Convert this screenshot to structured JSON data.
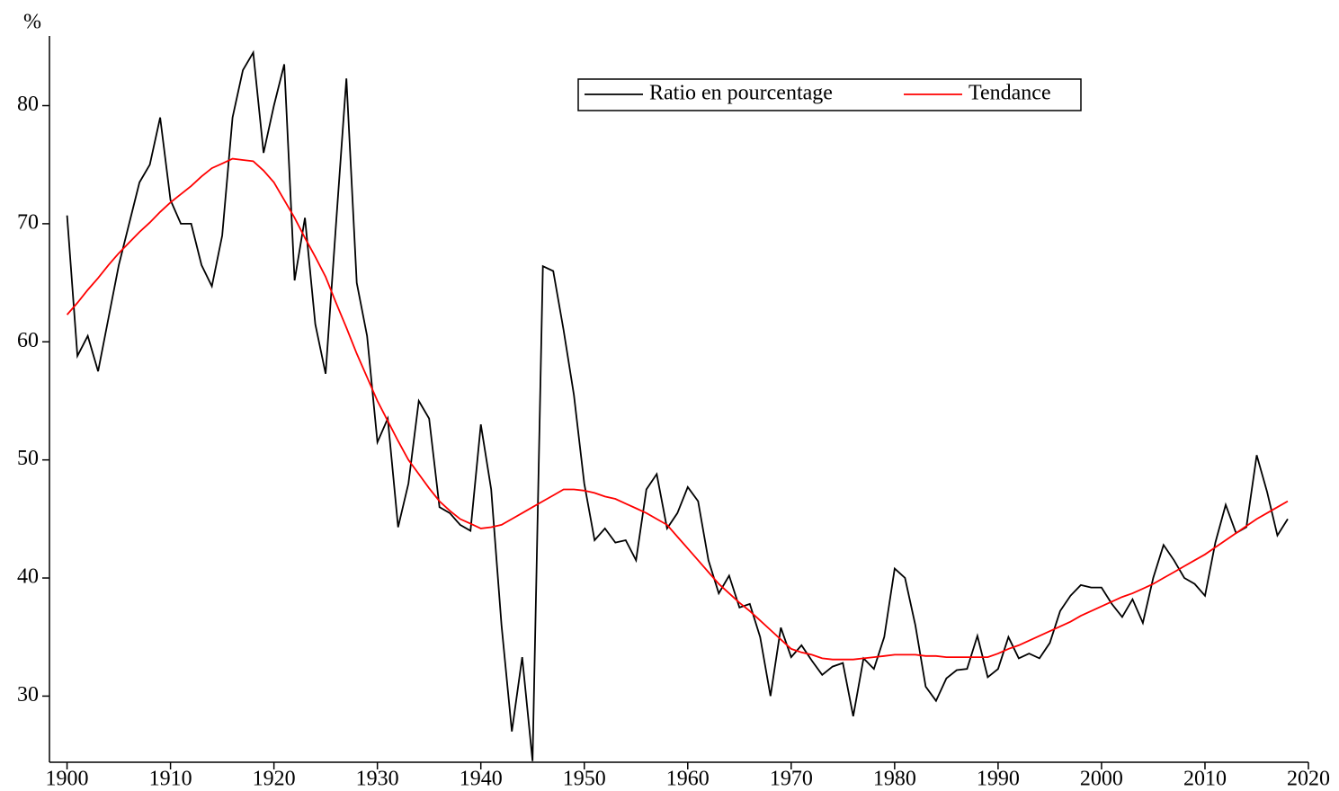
{
  "chart_data": {
    "type": "line",
    "y_label": "%",
    "legend": "top-center",
    "x": [
      1900,
      1901,
      1902,
      1903,
      1904,
      1905,
      1906,
      1907,
      1908,
      1909,
      1910,
      1911,
      1912,
      1913,
      1914,
      1915,
      1916,
      1917,
      1918,
      1919,
      1920,
      1921,
      1922,
      1923,
      1924,
      1925,
      1926,
      1927,
      1928,
      1929,
      1930,
      1931,
      1932,
      1933,
      1934,
      1935,
      1936,
      1937,
      1938,
      1939,
      1940,
      1941,
      1942,
      1943,
      1944,
      1945,
      1946,
      1947,
      1948,
      1949,
      1950,
      1951,
      1952,
      1953,
      1954,
      1955,
      1956,
      1957,
      1958,
      1959,
      1960,
      1961,
      1962,
      1963,
      1964,
      1965,
      1966,
      1967,
      1968,
      1969,
      1970,
      1971,
      1972,
      1973,
      1974,
      1975,
      1976,
      1977,
      1978,
      1979,
      1980,
      1981,
      1982,
      1983,
      1984,
      1985,
      1986,
      1987,
      1988,
      1989,
      1990,
      1991,
      1992,
      1993,
      1994,
      1995,
      1996,
      1997,
      1998,
      1999,
      2000,
      2001,
      2002,
      2003,
      2004,
      2005,
      2006,
      2007,
      2008,
      2009,
      2010,
      2011,
      2012,
      2013,
      2014,
      2015,
      2016,
      2017,
      2018
    ],
    "series": [
      {
        "name": "Ratio en pourcentage",
        "color": "#000000",
        "values": [
          70.7,
          58.8,
          60.5,
          57.5,
          62,
          66.5,
          70,
          73.5,
          75,
          79,
          72,
          70,
          70,
          66.5,
          64.7,
          69,
          79,
          83,
          84.5,
          76,
          80,
          83.5,
          65.2,
          70.5,
          61.5,
          57.3,
          70,
          82.3,
          65,
          60.5,
          51.5,
          53.5,
          44.3,
          48,
          55,
          53.5,
          46,
          45.5,
          44.5,
          44,
          53,
          47.5,
          36,
          27,
          33.3,
          24.5,
          66.4,
          66,
          61,
          55.5,
          48,
          43.2,
          44.2,
          43,
          43.2,
          41.5,
          47.5,
          48.8,
          44.2,
          45.5,
          47.7,
          46.5,
          41.5,
          38.7,
          40.2,
          37.5,
          37.8,
          35,
          30,
          35.8,
          33.3,
          34.3,
          33,
          31.8,
          32.5,
          32.8,
          28.3,
          33.2,
          32.3,
          35,
          40.8,
          40,
          36,
          30.8,
          29.6,
          31.5,
          32.2,
          32.3,
          35.1,
          31.6,
          32.3,
          35,
          33.2,
          33.6,
          33.2,
          34.5,
          37.2,
          38.5,
          39.4,
          39.2,
          39.2,
          37.8,
          36.7,
          38.2,
          36.2,
          40,
          42.8,
          41.5,
          40,
          39.5,
          38.5,
          43,
          46.2,
          43.8,
          44.3,
          50.4,
          47.3,
          43.6,
          45
        ]
      },
      {
        "name": "Tendance",
        "color": "#ff0000",
        "values": [
          62.3,
          63.3,
          64.4,
          65.4,
          66.5,
          67.5,
          68.4,
          69.3,
          70.1,
          71.0,
          71.8,
          72.5,
          73.2,
          74.0,
          74.7,
          75.1,
          75.5,
          75.4,
          75.3,
          74.5,
          73.5,
          72.0,
          70.5,
          68.8,
          67.2,
          65.5,
          63.3,
          61.2,
          59.0,
          57.0,
          55.0,
          53.3,
          51.6,
          50.0,
          48.8,
          47.6,
          46.5,
          45.7,
          45.0,
          44.6,
          44.2,
          44.3,
          44.5,
          45.0,
          45.5,
          46.0,
          46.5,
          47.0,
          47.5,
          47.5,
          47.4,
          47.2,
          46.9,
          46.7,
          46.3,
          45.9,
          45.5,
          45.0,
          44.5,
          43.5,
          42.5,
          41.5,
          40.5,
          39.5,
          38.7,
          37.9,
          37.2,
          36.4,
          35.6,
          34.8,
          34.0,
          33.7,
          33.5,
          33.2,
          33.1,
          33.1,
          33.1,
          33.2,
          33.3,
          33.4,
          33.5,
          33.5,
          33.5,
          33.4,
          33.4,
          33.3,
          33.3,
          33.3,
          33.3,
          33.3,
          33.6,
          34.0,
          34.3,
          34.7,
          35.1,
          35.5,
          35.9,
          36.3,
          36.8,
          37.2,
          37.6,
          38.0,
          38.4,
          38.7,
          39.1,
          39.5,
          40.0,
          40.5,
          41.0,
          41.5,
          42.0,
          42.6,
          43.2,
          43.8,
          44.4,
          45.0,
          45.5,
          46.0,
          46.5
        ]
      }
    ],
    "xlim": [
      1898.3,
      2020
    ],
    "xticks": [
      1900,
      1910,
      1920,
      1930,
      1940,
      1950,
      1960,
      1970,
      1980,
      1990,
      2000,
      2010,
      2020
    ],
    "ylim": [
      24.4,
      85.9
    ],
    "yticks": [
      30,
      40,
      50,
      60,
      70,
      80
    ]
  }
}
